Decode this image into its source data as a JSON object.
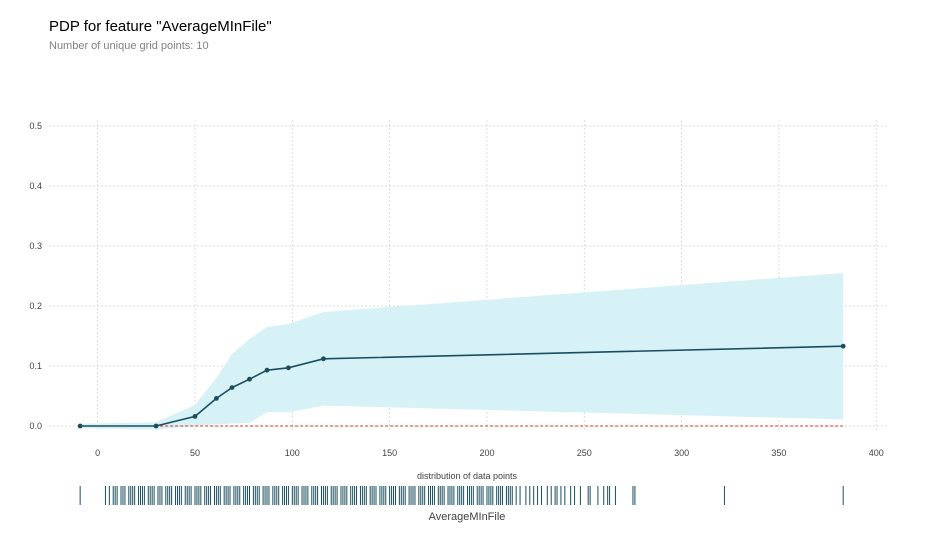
{
  "title": "PDP for feature \"AverageMInFile\"",
  "subtitle": "Number of unique grid points: 10",
  "chart_data": {
    "type": "line",
    "feature": "AverageMInFile",
    "xlabel": "AverageMInFile",
    "ylabel": "",
    "xlim": [
      -25,
      405
    ],
    "ylim": [
      -0.01,
      0.51
    ],
    "xticks": [
      0,
      50,
      100,
      150,
      200,
      250,
      300,
      350,
      400
    ],
    "yticks": [
      0.0,
      0.1,
      0.2,
      0.3,
      0.4,
      0.5
    ],
    "ytick_labels": [
      "0.0",
      "0.1",
      "0.2",
      "0.3",
      "0.4",
      "0.5"
    ],
    "grid": true,
    "x": [
      -9,
      30,
      50,
      61,
      69,
      78,
      87,
      98,
      116,
      383
    ],
    "y": [
      0.0,
      0.0,
      0.016,
      0.046,
      0.064,
      0.078,
      0.093,
      0.097,
      0.112,
      0.133
    ],
    "band_x": [
      -9,
      30,
      50,
      61,
      69,
      78,
      87,
      98,
      116,
      383
    ],
    "band_upper": [
      0.004,
      0.006,
      0.035,
      0.08,
      0.12,
      0.145,
      0.165,
      0.17,
      0.19,
      0.255
    ],
    "band_lower": [
      -0.004,
      -0.006,
      0.0,
      0.003,
      0.004,
      0.005,
      0.023,
      0.023,
      0.034,
      0.011
    ],
    "reference_line_y": 0.0,
    "colors": {
      "line": "#1a4e5e",
      "band": "#d6f2f7",
      "zero_line": "#cc3b1f",
      "rug": "#1a4e5e",
      "grid": "#cfcfcf"
    },
    "rug_title": "distribution of data points",
    "rug_points": [
      -9,
      4,
      6,
      8,
      9,
      10,
      12,
      13,
      14,
      16,
      17,
      18,
      19,
      21,
      22,
      23,
      24,
      26,
      27,
      28,
      29,
      31,
      32,
      33,
      35,
      36,
      37,
      38,
      40,
      41,
      42,
      43,
      45,
      46,
      47,
      48,
      50,
      51,
      52,
      53,
      55,
      56,
      57,
      58,
      60,
      61,
      62,
      63,
      65,
      66,
      67,
      68,
      70,
      71,
      72,
      73,
      75,
      76,
      77,
      78,
      80,
      81,
      82,
      83,
      85,
      86,
      87,
      88,
      90,
      91,
      92,
      93,
      95,
      96,
      97,
      98,
      100,
      101,
      102,
      103,
      105,
      106,
      107,
      108,
      110,
      111,
      112,
      113,
      115,
      116,
      117,
      118,
      120,
      121,
      122,
      123,
      125,
      126,
      127,
      128,
      130,
      131,
      132,
      133,
      135,
      136,
      137,
      138,
      140,
      141,
      142,
      143,
      145,
      146,
      147,
      148,
      150,
      151,
      152,
      153,
      155,
      156,
      157,
      158,
      160,
      161,
      162,
      163,
      165,
      166,
      167,
      168,
      170,
      171,
      172,
      173,
      175,
      176,
      177,
      178,
      180,
      181,
      182,
      183,
      185,
      186,
      187,
      188,
      190,
      191,
      192,
      193,
      195,
      196,
      197,
      198,
      200,
      201,
      202,
      203,
      205,
      206,
      207,
      208,
      210,
      211,
      212,
      213,
      215,
      217,
      220,
      222,
      224,
      226,
      228,
      231,
      233,
      235,
      236,
      238,
      240,
      243,
      245,
      248,
      252,
      253,
      257,
      260,
      262,
      263,
      266,
      275,
      276,
      322,
      383
    ]
  }
}
